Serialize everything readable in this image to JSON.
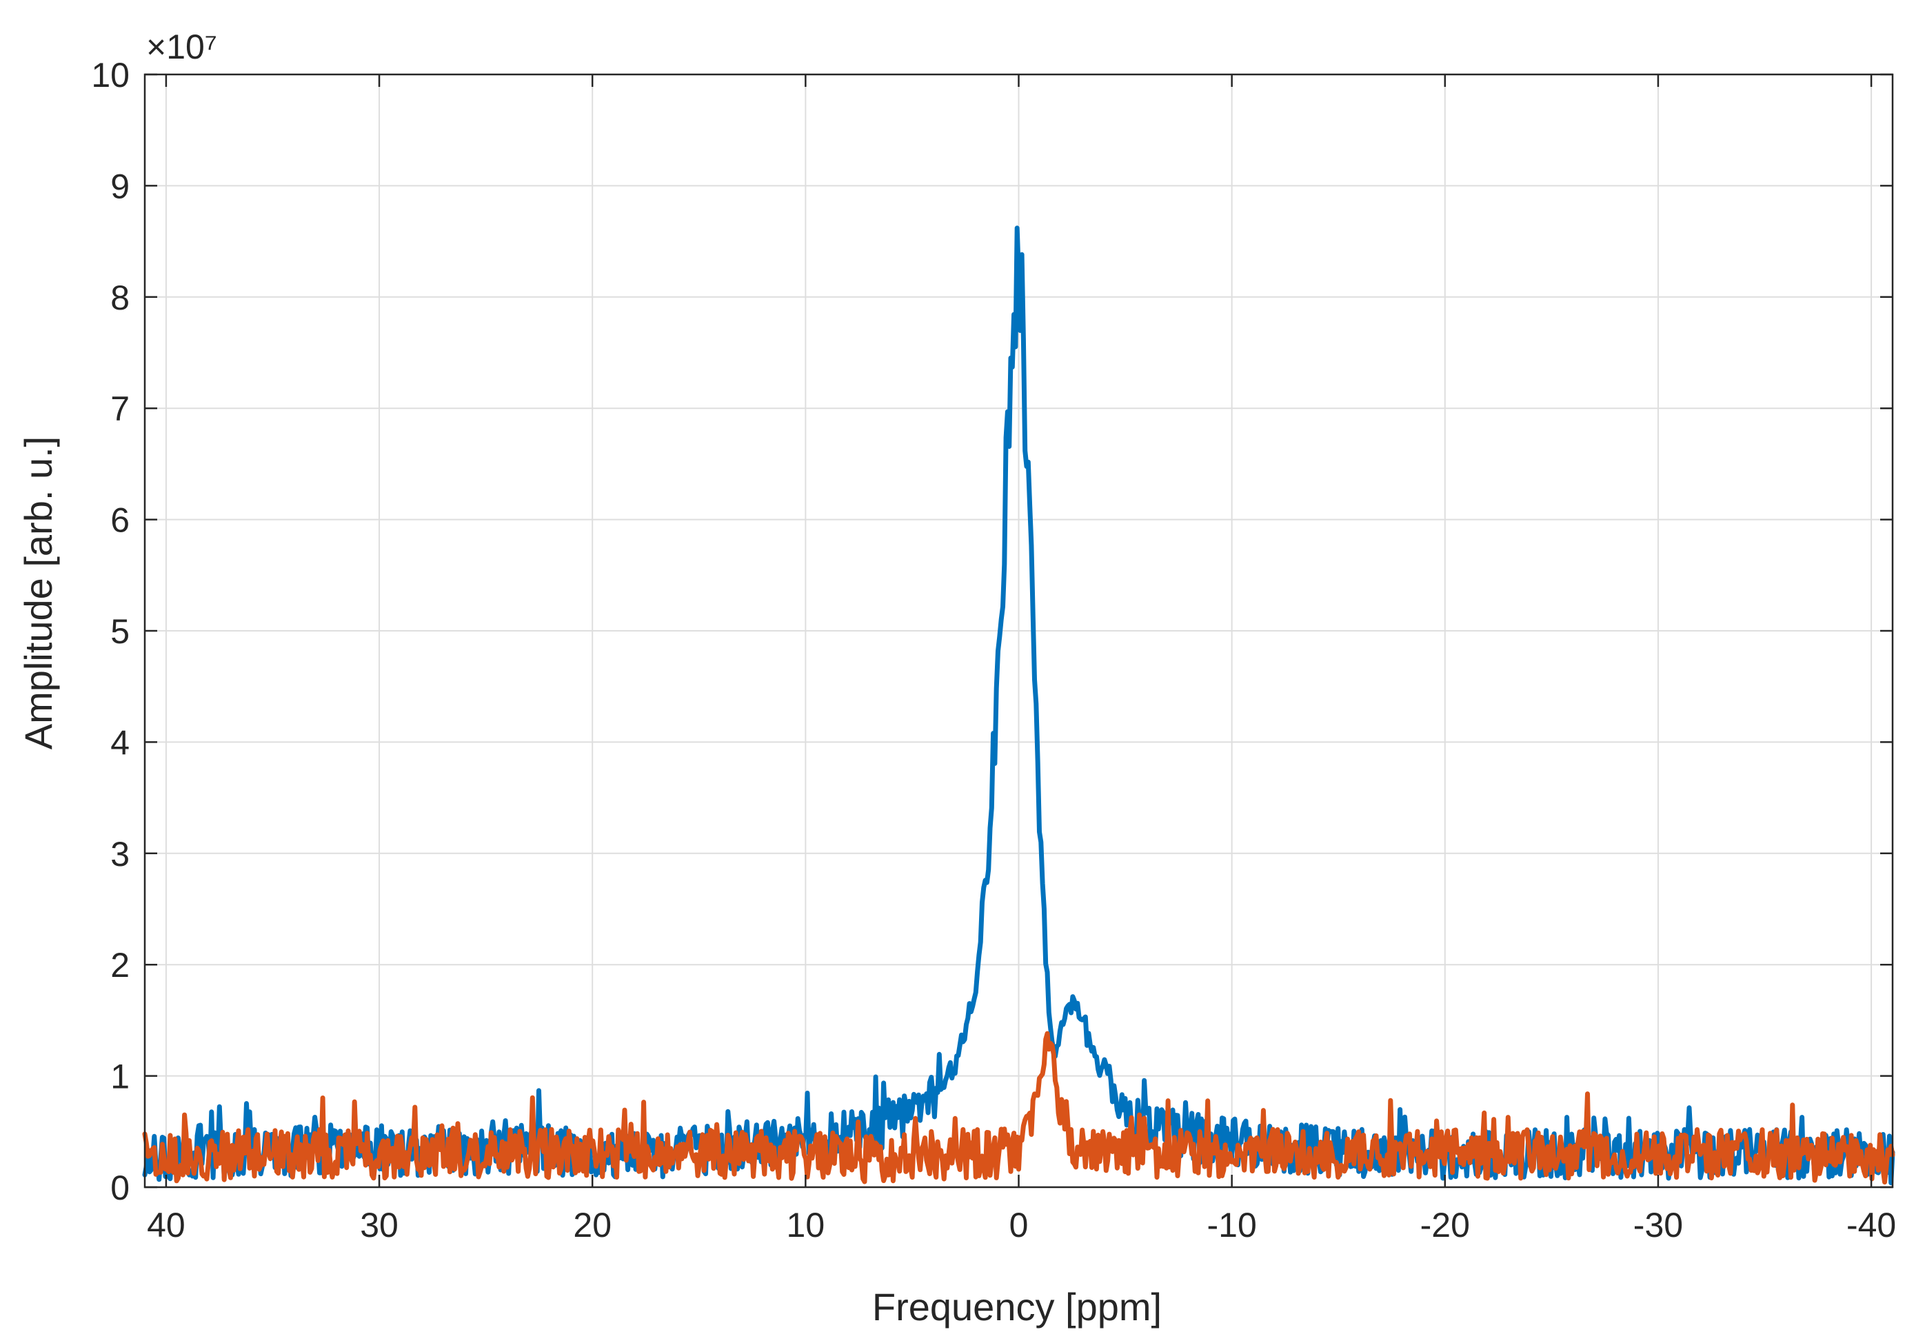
{
  "chart_data": {
    "type": "line",
    "xlabel": "Frequency [ppm]",
    "ylabel": "Amplitude [arb. u.]",
    "y_exponent_label": "×10⁷",
    "y_multiplier": 10000000,
    "xlim": [
      41,
      -41
    ],
    "x_reversed": true,
    "ylim": [
      0,
      10
    ],
    "x_ticks": [
      40,
      30,
      20,
      10,
      0,
      -10,
      -20,
      -30,
      -40
    ],
    "x_tick_labels": [
      "40",
      "30",
      "20",
      "10",
      "0",
      "-10",
      "-20",
      "-30",
      "-40"
    ],
    "y_ticks": [
      0,
      1,
      2,
      3,
      4,
      5,
      6,
      7,
      8,
      9,
      10
    ],
    "y_tick_labels": [
      "0",
      "1",
      "2",
      "3",
      "4",
      "5",
      "6",
      "7",
      "8",
      "9",
      "10"
    ],
    "grid": true,
    "series_style": "noisy line spectrum, values approximate (units of 1e7)",
    "series": [
      {
        "color": "#0072BD",
        "x": [
          41,
          38,
          35,
          32,
          29,
          26,
          23,
          20,
          17,
          14,
          11,
          9,
          7,
          6,
          5,
          4,
          3,
          2.5,
          2,
          1.5,
          1,
          0.7,
          0.4,
          0.2,
          0,
          -0.2,
          -0.4,
          -0.7,
          -1,
          -1.3,
          -1.6,
          -2,
          -2.5,
          -3,
          -3.5,
          -4,
          -4.5,
          -5,
          -6,
          -7,
          -8,
          -10,
          -13,
          -16,
          -20,
          -24,
          -28,
          -32,
          -36,
          -39,
          -41
        ],
        "y": [
          0.25,
          0.3,
          0.3,
          0.35,
          0.3,
          0.3,
          0.35,
          0.3,
          0.3,
          0.35,
          0.4,
          0.45,
          0.5,
          0.6,
          0.7,
          0.8,
          1.1,
          1.4,
          1.9,
          2.8,
          4.4,
          5.8,
          7.2,
          8.1,
          8.4,
          7.8,
          6.5,
          5.0,
          3.2,
          2.0,
          1.2,
          1.4,
          1.6,
          1.5,
          1.2,
          1.0,
          0.8,
          0.7,
          0.55,
          0.5,
          0.45,
          0.4,
          0.35,
          0.3,
          0.3,
          0.3,
          0.3,
          0.3,
          0.3,
          0.3,
          0.25
        ]
      },
      {
        "color": "#D95319",
        "x": [
          41,
          36,
          31,
          26,
          21,
          16,
          11,
          6,
          3,
          1,
          0,
          -0.5,
          -1,
          -1.3,
          -1.6,
          -2,
          -2.5,
          -3,
          -4,
          -6,
          -10,
          -15,
          -20,
          -25,
          -30,
          -35,
          -41
        ],
        "y": [
          0.25,
          0.3,
          0.3,
          0.3,
          0.3,
          0.3,
          0.3,
          0.25,
          0.3,
          0.3,
          0.35,
          0.5,
          0.9,
          1.3,
          1.2,
          0.6,
          0.4,
          0.3,
          0.3,
          0.3,
          0.3,
          0.3,
          0.3,
          0.3,
          0.3,
          0.3,
          0.25
        ]
      }
    ]
  }
}
